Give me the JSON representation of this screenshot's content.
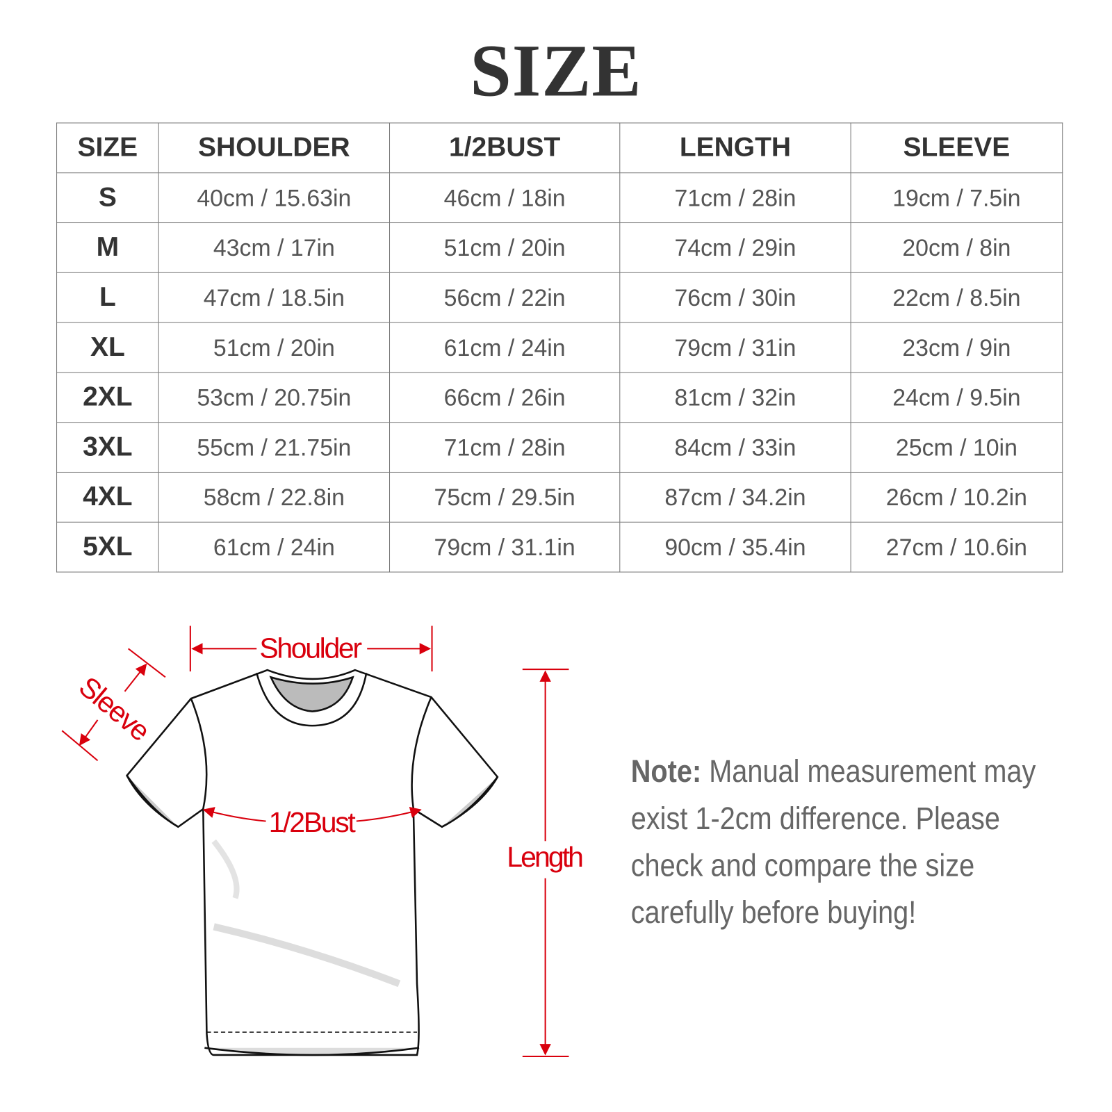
{
  "title": "SIZE",
  "table": {
    "headers": [
      "SIZE",
      "SHOULDER",
      "1/2BUST",
      "LENGTH",
      "SLEEVE"
    ],
    "rows": [
      [
        "S",
        "40cm / 15.63in",
        "46cm / 18in",
        "71cm / 28in",
        "19cm / 7.5in"
      ],
      [
        "M",
        "43cm / 17in",
        "51cm / 20in",
        "74cm / 29in",
        "20cm / 8in"
      ],
      [
        "L",
        "47cm / 18.5in",
        "56cm / 22in",
        "76cm / 30in",
        "22cm / 8.5in"
      ],
      [
        "XL",
        "51cm / 20in",
        "61cm / 24in",
        "79cm / 31in",
        "23cm / 9in"
      ],
      [
        "2XL",
        "53cm / 20.75in",
        "66cm / 26in",
        "81cm / 32in",
        "24cm / 9.5in"
      ],
      [
        "3XL",
        "55cm / 21.75in",
        "71cm / 28in",
        "84cm / 33in",
        "25cm / 10in"
      ],
      [
        "4XL",
        "58cm / 22.8in",
        "75cm / 29.5in",
        "87cm / 34.2in",
        "26cm / 10.2in"
      ],
      [
        "5XL",
        "61cm / 24in",
        "79cm / 31.1in",
        "90cm / 35.4in",
        "27cm / 10.6in"
      ]
    ]
  },
  "diagram": {
    "shoulder_label": "Shoulder",
    "sleeve_label": "Sleeve",
    "bust_label": "1/2Bust",
    "length_label": "Length",
    "accent_color": "#d9000d"
  },
  "note": {
    "label": "Note:",
    "text": " Manual measurement may exist 1-2cm difference. Please check and compare the size carefully before buying!"
  }
}
